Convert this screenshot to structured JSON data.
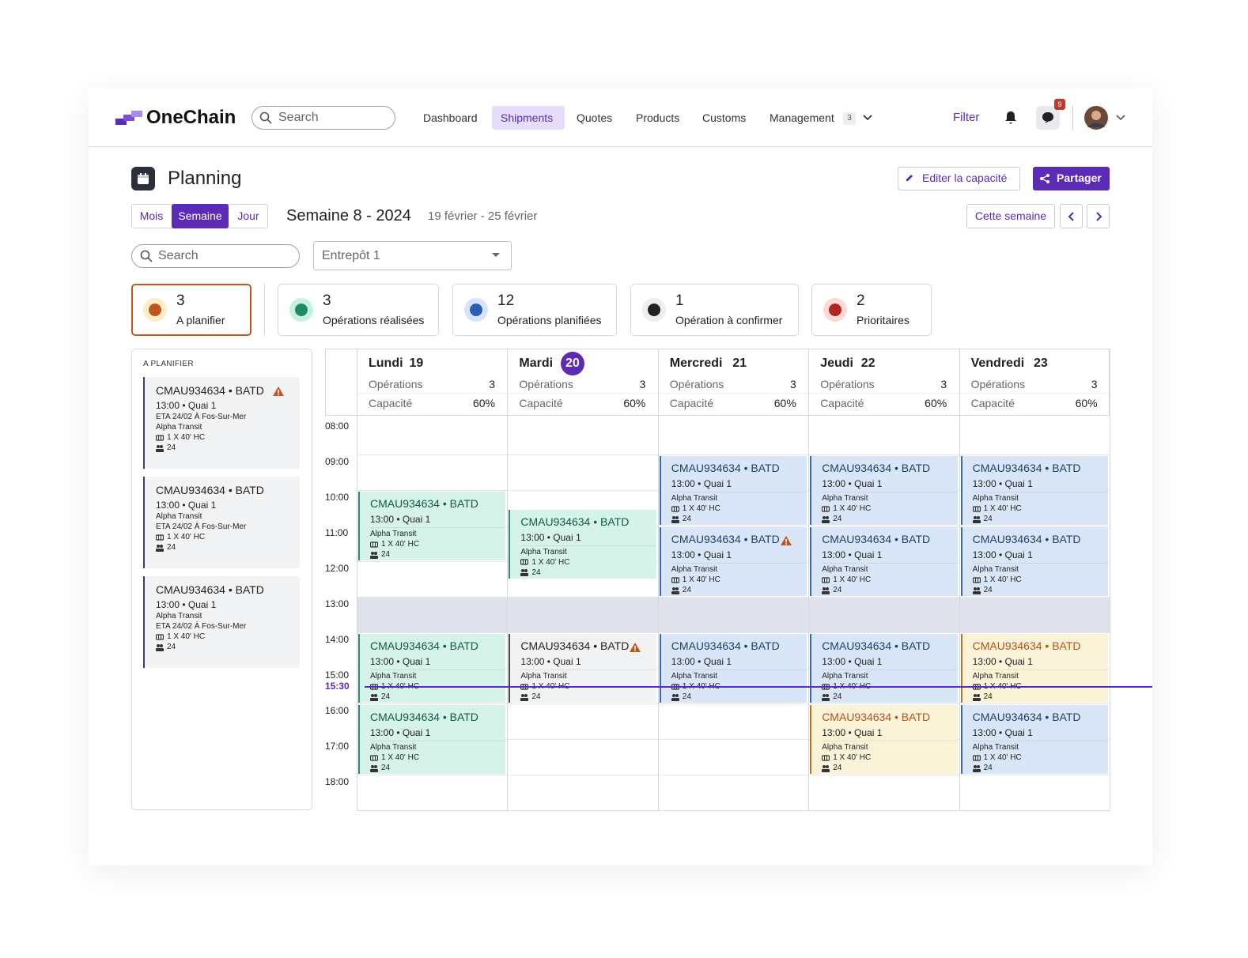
{
  "nav": {
    "logo": "OneChain",
    "search": "Search",
    "links": [
      "Dashboard",
      "Shipments",
      "Quotes",
      "Products",
      "Customs",
      "Management"
    ],
    "active": 1,
    "management_badge": 3,
    "filter": "Filter",
    "messages_badge": 9
  },
  "header": {
    "title": "Planning",
    "edit": "Editer la capacité",
    "share": "Partager"
  },
  "toolbar": {
    "views": [
      "Mois",
      "Semaine",
      "Jour"
    ],
    "active_view": 1,
    "week": "Semaine 8 - 2024",
    "range": "19 février - 25 février",
    "today": "Cette semaine",
    "search": "Search",
    "warehouse": "Entrepôt 1"
  },
  "stats": [
    {
      "value": 3,
      "label": "A planifier",
      "tone": "orange"
    },
    {
      "value": 3,
      "label": "Opérations réalisées",
      "tone": "green"
    },
    {
      "value": 12,
      "label": "Opérations planifiées",
      "tone": "blue"
    },
    {
      "value": 1,
      "label": "Opération à confirmer",
      "tone": "dark"
    },
    {
      "value": 2,
      "label": "Prioritaires",
      "tone": "red"
    }
  ],
  "active_stat": 0,
  "backlog": {
    "title": "A PLANIFIER",
    "items": [
      {
        "ref": "CMAU934634 • BATD",
        "time": "13:00 • Quai 1",
        "eta": "ETA 24/02 À Fos-Sur-Mer",
        "carrier": "Alpha Transit",
        "container": "1 X 40' HC",
        "count": 24,
        "warning": true
      },
      {
        "ref": "CMAU934634 • BATD",
        "time": "13:00 • Quai 1",
        "carrier": "Alpha Transit",
        "eta": "ETA 24/02 À Fos-Sur-Mer",
        "container": "1 X 40' HC",
        "count": 24
      },
      {
        "ref": "CMAU934634 • BATD",
        "time": "13:00 • Quai 1",
        "carrier": "Alpha Transit",
        "eta": "ETA 24/02 À Fos-Sur-Mer",
        "container": "1 X 40' HC",
        "count": 24
      }
    ]
  },
  "calendar": {
    "days": [
      {
        "name": "Lundi",
        "date": 19,
        "ops_label": "Opérations",
        "ops": 3,
        "cap_label": "Capacité",
        "capacity": "60%"
      },
      {
        "name": "Mardi",
        "date": 20,
        "ops_label": "Opérations",
        "ops": 3,
        "cap_label": "Capacité",
        "capacity": "60%"
      },
      {
        "name": "Mercredi",
        "date": 21,
        "ops_label": "Opérations",
        "ops": 3,
        "cap_label": "Capacité",
        "capacity": "60%"
      },
      {
        "name": "Jeudi",
        "date": 22,
        "ops_label": "Opérations",
        "ops": 3,
        "cap_label": "Capacité",
        "capacity": "60%"
      },
      {
        "name": "Vendredi",
        "date": 23,
        "ops_label": "Opérations",
        "ops": 3,
        "cap_label": "Capacité",
        "capacity": "60%"
      }
    ],
    "today": 1,
    "hours": [
      "08:00",
      "09:00",
      "10:00",
      "11:00",
      "12:00",
      "13:00",
      "14:00",
      "15:00",
      "16:00",
      "17:00",
      "18:00"
    ],
    "break": [
      "13:00",
      "14:00"
    ],
    "now": "15:30",
    "events": [
      {
        "day": 0,
        "start": "10:00",
        "end": "12:00",
        "tone": "green",
        "ref": "CMAU934634 • BATD",
        "time": "13:00 • Quai 1",
        "carrier": "Alpha Transit",
        "container": "1 X 40' HC",
        "count": 24
      },
      {
        "day": 0,
        "start": "14:00",
        "end": "16:00",
        "tone": "green",
        "ref": "CMAU934634 • BATD",
        "time": "13:00 • Quai 1",
        "carrier": "Alpha Transit",
        "container": "1 X 40' HC",
        "count": 24
      },
      {
        "day": 0,
        "start": "16:00",
        "end": "18:00",
        "tone": "green",
        "ref": "CMAU934634 • BATD",
        "time": "13:00 • Quai 1",
        "carrier": "Alpha Transit",
        "container": "1 X 40' HC",
        "count": 24
      },
      {
        "day": 1,
        "start": "10:30",
        "end": "12:30",
        "tone": "green",
        "ref": "CMAU934634 • BATD",
        "time": "13:00 • Quai 1",
        "carrier": "Alpha Transit",
        "container": "1 X 40' HC",
        "count": 24
      },
      {
        "day": 1,
        "start": "14:00",
        "end": "16:00",
        "tone": "grey",
        "ref": "CMAU934634 • BATD",
        "time": "13:00 • Quai 1",
        "carrier": "Alpha Transit",
        "container": "1 X 40' HC",
        "count": 24,
        "warning": true
      },
      {
        "day": 2,
        "start": "09:00",
        "end": "11:00",
        "tone": "blue",
        "ref": "CMAU934634 • BATD",
        "time": "13:00 • Quai 1",
        "carrier": "Alpha Transit",
        "container": "1 X 40' HC",
        "count": 24
      },
      {
        "day": 2,
        "start": "11:00",
        "end": "13:00",
        "tone": "blue",
        "ref": "CMAU934634 • BATD",
        "time": "13:00 • Quai 1",
        "carrier": "Alpha Transit",
        "container": "1 X 40' HC",
        "count": 24,
        "warning": true
      },
      {
        "day": 2,
        "start": "14:00",
        "end": "16:00",
        "tone": "blue",
        "ref": "CMAU934634 • BATD",
        "time": "13:00 • Quai 1",
        "carrier": "Alpha Transit",
        "container": "1 X 40' HC",
        "count": 24
      },
      {
        "day": 3,
        "start": "09:00",
        "end": "11:00",
        "tone": "blue",
        "ref": "CMAU934634 • BATD",
        "time": "13:00 • Quai 1",
        "carrier": "Alpha Transit",
        "container": "1 X 40' HC",
        "count": 24
      },
      {
        "day": 3,
        "start": "11:00",
        "end": "13:00",
        "tone": "blue",
        "ref": "CMAU934634 • BATD",
        "time": "13:00 • Quai 1",
        "carrier": "Alpha Transit",
        "container": "1 X 40' HC",
        "count": 24
      },
      {
        "day": 3,
        "start": "14:00",
        "end": "16:00",
        "tone": "blue",
        "ref": "CMAU934634 • BATD",
        "time": "13:00 • Quai 1",
        "carrier": "Alpha Transit",
        "container": "1 X 40' HC",
        "count": 24
      },
      {
        "day": 3,
        "start": "16:00",
        "end": "18:00",
        "tone": "yellow",
        "ref": "CMAU934634 • BATD",
        "time": "13:00 • Quai 1",
        "carrier": "Alpha Transit",
        "container": "1 X 40' HC",
        "count": 24
      },
      {
        "day": 4,
        "start": "09:00",
        "end": "11:00",
        "tone": "blue",
        "ref": "CMAU934634 • BATD",
        "time": "13:00 • Quai 1",
        "carrier": "Alpha Transit",
        "container": "1 X 40' HC",
        "count": 24
      },
      {
        "day": 4,
        "start": "11:00",
        "end": "13:00",
        "tone": "blue",
        "ref": "CMAU934634 • BATD",
        "time": "13:00 • Quai 1",
        "carrier": "Alpha Transit",
        "container": "1 X 40' HC",
        "count": 24
      },
      {
        "day": 4,
        "start": "14:00",
        "end": "16:00",
        "tone": "yellow",
        "ref": "CMAU934634 • BATD",
        "time": "13:00 • Quai 1",
        "carrier": "Alpha Transit",
        "container": "1 X 40' HC",
        "count": 24
      },
      {
        "day": 4,
        "start": "16:00",
        "end": "18:00",
        "tone": "blue",
        "ref": "CMAU934634 • BATD",
        "time": "13:00 • Quai 1",
        "carrier": "Alpha Transit",
        "container": "1 X 40' HC",
        "count": 24
      }
    ]
  }
}
